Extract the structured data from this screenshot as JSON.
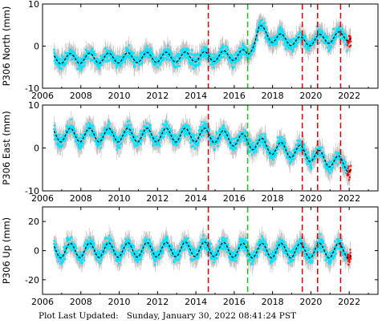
{
  "footer": "Plot Last Updated:   Sunday, January 30, 2022 08:41:24 PST",
  "colors": {
    "raw_points": "#00e5ff",
    "error_bars": "#b0b0b0",
    "recent_points": "#ff0000",
    "model_line": "#000000",
    "red_events": "#dd0000",
    "green_events": "#22bb22"
  },
  "chart_data": [
    {
      "type": "scatter",
      "station": "P306",
      "component": "North",
      "ylabel": "P306 North (mm)",
      "xlim": [
        2006,
        2023.5
      ],
      "ylim": [
        -10,
        10
      ],
      "x_ticks": [
        2006,
        2008,
        2010,
        2012,
        2014,
        2016,
        2018,
        2020,
        2022
      ],
      "y_ticks": [
        -10,
        0,
        10
      ],
      "grid": false,
      "model": {
        "x": [
          2006.7,
          2014.7,
          2016.7,
          2017.3,
          2018.0,
          2019.5,
          2022.0
        ],
        "y": [
          -3.0,
          -2.5,
          -2.0,
          4.0,
          2.0,
          1.0,
          2.5
        ]
      },
      "seasonal_amplitude": 1.2,
      "x_range": [
        2006.6,
        2022.1
      ]
    },
    {
      "type": "scatter",
      "station": "P306",
      "component": "East",
      "ylabel": "P306 East (mm)",
      "xlim": [
        2006,
        2023.5
      ],
      "ylim": [
        -10,
        10
      ],
      "x_ticks": [
        2006,
        2008,
        2010,
        2012,
        2014,
        2016,
        2018,
        2020,
        2022
      ],
      "y_ticks": [
        -10,
        0,
        10
      ],
      "grid": false,
      "model": {
        "x": [
          2006.7,
          2014.7,
          2016.7,
          2018.0,
          2019.5,
          2020.3,
          2021.5,
          2022.0
        ],
        "y": [
          3.0,
          3.0,
          1.5,
          0.0,
          -1.0,
          -2.0,
          -3.5,
          -4.0
        ]
      },
      "seasonal_amplitude": 1.6,
      "x_range": [
        2006.6,
        2022.1
      ]
    },
    {
      "type": "scatter",
      "station": "P306",
      "component": "Up",
      "ylabel": "P306 Up (mm)",
      "xlim": [
        2006,
        2023.5
      ],
      "ylim": [
        -30,
        30
      ],
      "x_ticks": [
        2006,
        2008,
        2010,
        2012,
        2014,
        2016,
        2018,
        2020,
        2022
      ],
      "y_ticks": [
        -20,
        0,
        20
      ],
      "grid": false,
      "model": {
        "x": [
          2006.7,
          2014.7,
          2016.7,
          2022.0
        ],
        "y": [
          0.0,
          1.0,
          0.0,
          0.0
        ]
      },
      "seasonal_amplitude": 5.0,
      "x_range": [
        2006.6,
        2022.1
      ]
    }
  ],
  "events": {
    "red": [
      2014.65,
      2019.55,
      2020.35,
      2021.55
    ],
    "green": [
      2016.7
    ]
  }
}
